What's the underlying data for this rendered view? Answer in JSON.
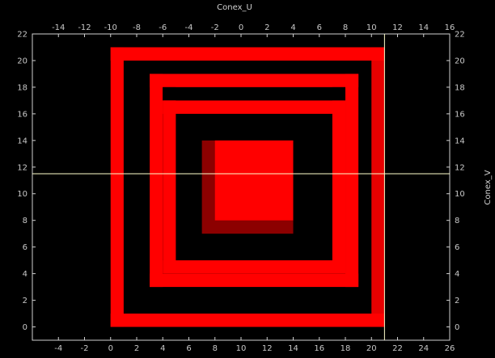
{
  "chart_data": {
    "type": "heatmap",
    "title": "",
    "top_axis": {
      "label": "Conex_U",
      "range": [
        -16,
        16
      ],
      "ticks": [
        -14,
        -12,
        -10,
        -8,
        -6,
        -4,
        -2,
        0,
        2,
        4,
        6,
        8,
        10,
        12,
        14,
        16
      ]
    },
    "bottom_axis": {
      "label": "",
      "range": [
        -6,
        26
      ],
      "ticks": [
        -4,
        -2,
        0,
        2,
        4,
        6,
        8,
        10,
        12,
        14,
        16,
        18,
        20,
        22,
        24,
        26
      ]
    },
    "left_axis": {
      "label": "",
      "range": [
        -1,
        22
      ],
      "ticks": [
        0,
        2,
        4,
        6,
        8,
        10,
        12,
        14,
        16,
        18,
        20,
        22
      ]
    },
    "right_axis": {
      "label": "Conex_V",
      "range": [
        -1,
        22
      ],
      "ticks": [
        0,
        2,
        4,
        6,
        8,
        10,
        12,
        14,
        16,
        18,
        20,
        22
      ]
    },
    "grid": false,
    "background_color": "#000000",
    "cell_color": "#ff0000",
    "crosshair": {
      "x": 21,
      "y": 11.5,
      "color": "#ffffcc"
    },
    "cells": [
      {
        "x0": 0,
        "x1": 21,
        "y0": 20,
        "y1": 21,
        "value": 1.0
      },
      {
        "x0": 0,
        "x1": 21,
        "y0": 0,
        "y1": 1,
        "value": 1.0
      },
      {
        "x0": 0,
        "x1": 1,
        "y0": 0,
        "y1": 21,
        "value": 1.0
      },
      {
        "x0": 20,
        "x1": 21,
        "y0": 0,
        "y1": 21,
        "value": 0.9
      },
      {
        "x0": 3,
        "x1": 19,
        "y0": 18,
        "y1": 19,
        "value": 1.0
      },
      {
        "x0": 3,
        "x1": 19,
        "y0": 3,
        "y1": 4,
        "value": 1.0
      },
      {
        "x0": 3,
        "x1": 4,
        "y0": 3,
        "y1": 19,
        "value": 1.0
      },
      {
        "x0": 18,
        "x1": 19,
        "y0": 3,
        "y1": 19,
        "value": 1.0
      },
      {
        "x0": 4,
        "x1": 18,
        "y0": 17,
        "y1": 18,
        "value": 0.0
      },
      {
        "x0": 4,
        "x1": 18,
        "y0": 4,
        "y1": 5,
        "value": 0.0
      },
      {
        "x0": 4,
        "x1": 5,
        "y0": 4,
        "y1": 18,
        "value": 0.0
      },
      {
        "x0": 17,
        "x1": 18,
        "y0": 4,
        "y1": 18,
        "value": 0.0
      },
      {
        "x0": 4,
        "x1": 5,
        "y0": 16,
        "y1": 17,
        "value": 1.0
      },
      {
        "x0": 4,
        "x1": 18,
        "y0": 16,
        "y1": 17,
        "value": 1.0
      },
      {
        "x0": 4,
        "x1": 18,
        "y0": 4,
        "y1": 5,
        "value": 1.0
      },
      {
        "x0": 4,
        "x1": 5,
        "y0": 4,
        "y1": 17,
        "value": 1.0
      },
      {
        "x0": 17,
        "x1": 18,
        "y0": 4,
        "y1": 17,
        "value": 1.0
      },
      {
        "x0": 7,
        "x1": 14,
        "y0": 7,
        "y1": 14,
        "value": 0.55
      },
      {
        "x0": 8,
        "x1": 14,
        "y0": 8,
        "y1": 14,
        "value": 1.0
      }
    ]
  }
}
